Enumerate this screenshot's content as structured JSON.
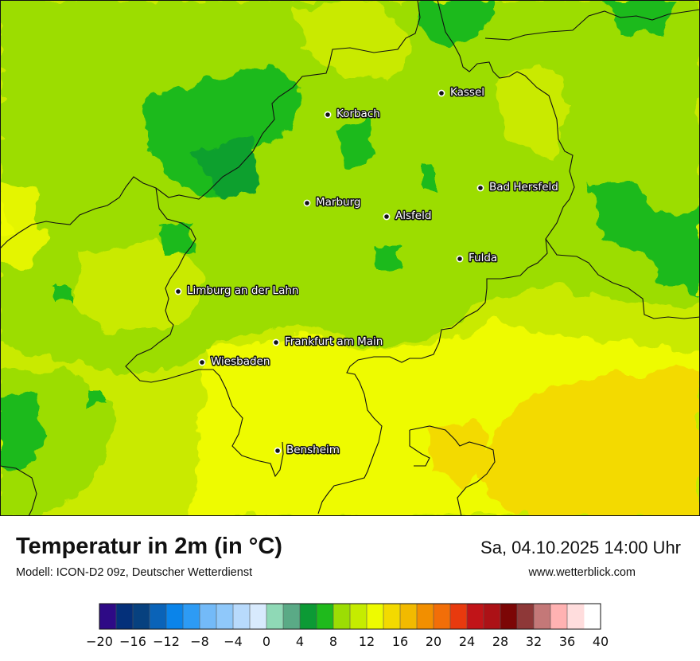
{
  "map": {
    "cities": [
      {
        "name": "Kassel"
      },
      {
        "name": "Korbach"
      },
      {
        "name": "Bad Hersfeld"
      },
      {
        "name": "Marburg"
      },
      {
        "name": "Alsfeld"
      },
      {
        "name": "Fulda"
      },
      {
        "name": "Limburg an der Lahn"
      },
      {
        "name": "Frankfurt am Main"
      },
      {
        "name": "Wiesbaden"
      },
      {
        "name": "Bensheim"
      }
    ]
  },
  "footer": {
    "title": "Temperatur in 2m (in °C)",
    "model": "Modell: ICON-D2 09z, Deutscher Wetterdienst",
    "datetime": "Sa, 04.10.2025 14:00 Uhr",
    "website": "www.wetterblick.com"
  },
  "scale": {
    "min": -20,
    "max": 40,
    "step": 2,
    "colors": [
      "#2e0a86",
      "#04307a",
      "#07417f",
      "#0a63b8",
      "#0a84ea",
      "#2d9bf4",
      "#73baf8",
      "#8fc8fa",
      "#b8dafc",
      "#d8eafd",
      "#8fd9b6",
      "#5aaa86",
      "#0c9a35",
      "#1fba1c",
      "#9cdd04",
      "#c5ec00",
      "#eefb00",
      "#f3da00",
      "#f2ba00",
      "#f28f00",
      "#f26e08",
      "#e83a0e",
      "#c11418",
      "#ac1116",
      "#7c0606",
      "#8e3838",
      "#c47878",
      "#ffb2b2",
      "#ffdddd"
    ],
    "tick_labels": [
      "−20",
      "−16",
      "−12",
      "−8",
      "−4",
      "0",
      "4",
      "8",
      "12",
      "16",
      "20",
      "24",
      "28",
      "32",
      "36",
      "40"
    ]
  }
}
